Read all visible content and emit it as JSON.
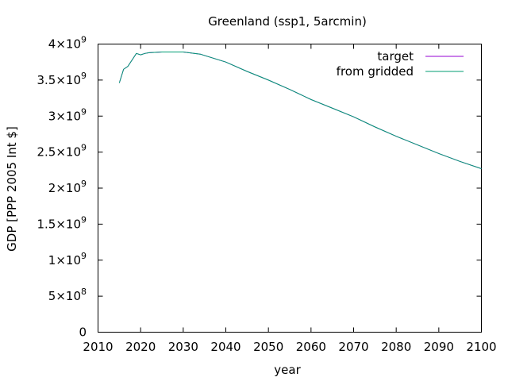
{
  "chart_data": {
    "type": "line",
    "title": "Greenland (ssp1, 5arcmin)",
    "xlabel": "year",
    "ylabel": "GDP [PPP 2005 Int $]",
    "xlim": [
      2010,
      2100
    ],
    "ylim": [
      0,
      4000000000
    ],
    "x_ticks": [
      {
        "value": 2010,
        "label": "2010"
      },
      {
        "value": 2020,
        "label": "2020"
      },
      {
        "value": 2030,
        "label": "2030"
      },
      {
        "value": 2040,
        "label": "2040"
      },
      {
        "value": 2050,
        "label": "2050"
      },
      {
        "value": 2060,
        "label": "2060"
      },
      {
        "value": 2070,
        "label": "2070"
      },
      {
        "value": 2080,
        "label": "2080"
      },
      {
        "value": 2090,
        "label": "2090"
      },
      {
        "value": 2100,
        "label": "2100"
      }
    ],
    "y_ticks": [
      {
        "value": 0,
        "mantissa": "0",
        "exponent": ""
      },
      {
        "value": 500000000,
        "mantissa": "5×10",
        "exponent": "8"
      },
      {
        "value": 1000000000,
        "mantissa": "1×10",
        "exponent": "9"
      },
      {
        "value": 1500000000,
        "mantissa": "1.5×10",
        "exponent": "9"
      },
      {
        "value": 2000000000,
        "mantissa": "2×10",
        "exponent": "9"
      },
      {
        "value": 2500000000,
        "mantissa": "2.5×10",
        "exponent": "9"
      },
      {
        "value": 3000000000,
        "mantissa": "3×10",
        "exponent": "9"
      },
      {
        "value": 3500000000,
        "mantissa": "3.5×10",
        "exponent": "9"
      },
      {
        "value": 4000000000,
        "mantissa": "4×10",
        "exponent": "9"
      }
    ],
    "legend_position": "top-right",
    "grid": false,
    "series": [
      {
        "name": "target",
        "color": "#9400d3",
        "x": [
          2015,
          2016,
          2017,
          2018,
          2019,
          2020,
          2021,
          2022,
          2025,
          2030,
          2034,
          2040,
          2045,
          2050,
          2055,
          2060,
          2065,
          2070,
          2075,
          2080,
          2085,
          2090,
          2095,
          2100
        ],
        "values": [
          3460000000,
          3650000000,
          3690000000,
          3780000000,
          3870000000,
          3850000000,
          3870000000,
          3880000000,
          3890000000,
          3890000000,
          3860000000,
          3750000000,
          3620000000,
          3500000000,
          3370000000,
          3230000000,
          3110000000,
          2990000000,
          2850000000,
          2720000000,
          2600000000,
          2480000000,
          2370000000,
          2270000000
        ]
      },
      {
        "name": "from gridded",
        "color": "#009e73",
        "x": [
          2015,
          2016,
          2017,
          2018,
          2019,
          2020,
          2021,
          2022,
          2025,
          2030,
          2034,
          2040,
          2045,
          2050,
          2055,
          2060,
          2065,
          2070,
          2075,
          2080,
          2085,
          2090,
          2095,
          2100
        ],
        "values": [
          3460000000,
          3650000000,
          3690000000,
          3780000000,
          3870000000,
          3850000000,
          3870000000,
          3880000000,
          3890000000,
          3890000000,
          3860000000,
          3750000000,
          3620000000,
          3500000000,
          3370000000,
          3230000000,
          3110000000,
          2990000000,
          2850000000,
          2720000000,
          2600000000,
          2480000000,
          2370000000,
          2270000000
        ]
      }
    ]
  }
}
